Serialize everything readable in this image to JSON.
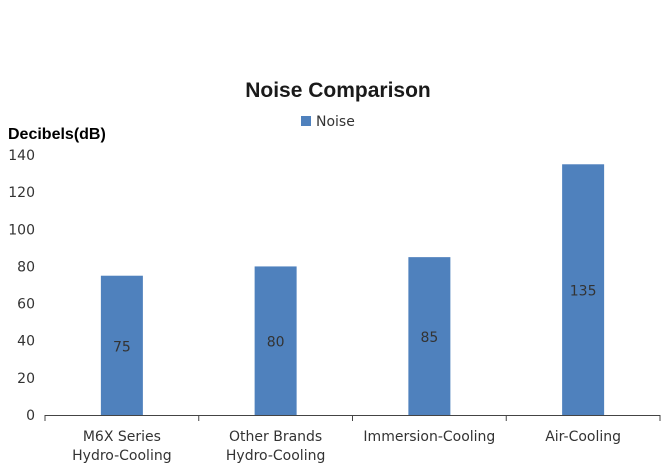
{
  "chart_data": {
    "type": "bar",
    "title": "Noise Comparison",
    "ylabel": "Decibels(dB)",
    "xlabel": "",
    "categories": [
      [
        "M6X Series",
        "Hydro-Cooling"
      ],
      [
        "Other Brands",
        "Hydro-Cooling"
      ],
      [
        "Immersion-Cooling"
      ],
      [
        "Air-Cooling"
      ]
    ],
    "series": [
      {
        "name": "Noise",
        "values": [
          75,
          80,
          85,
          135
        ],
        "color": "#4f81bd"
      }
    ],
    "ylim": [
      0,
      140
    ],
    "yticks": [
      0,
      20,
      40,
      60,
      80,
      100,
      120,
      140
    ],
    "data_labels": [
      "75",
      "80",
      "85",
      "135"
    ],
    "legend_position": "top",
    "grid": false
  }
}
